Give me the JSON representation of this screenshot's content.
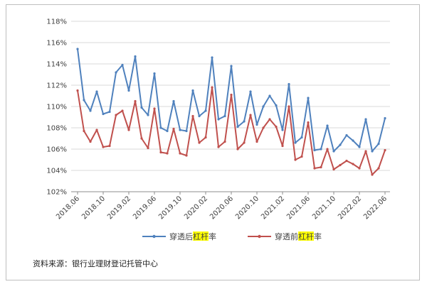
{
  "chart_data": {
    "type": "line",
    "title": "",
    "xlabel": "",
    "ylabel": "",
    "ylim": [
      102,
      118
    ],
    "y_ticks": [
      "102%",
      "104%",
      "106%",
      "108%",
      "110%",
      "112%",
      "114%",
      "116%",
      "118%"
    ],
    "y_tick_values": [
      102,
      104,
      106,
      108,
      110,
      112,
      114,
      116,
      118
    ],
    "x_tick_labels": [
      "2018.06",
      "2018.10",
      "2019.02",
      "2019.06",
      "2019.10",
      "2020.02",
      "2020.06",
      "2020.10",
      "2021.02",
      "2021.06",
      "2021.10",
      "2022.02",
      "2022.06"
    ],
    "categories": [
      "2018.06",
      "2018.07",
      "2018.08",
      "2018.09",
      "2018.10",
      "2018.11",
      "2018.12",
      "2019.01",
      "2019.02",
      "2019.03",
      "2019.04",
      "2019.05",
      "2019.06",
      "2019.07",
      "2019.08",
      "2019.09",
      "2019.10",
      "2019.11",
      "2019.12",
      "2020.01",
      "2020.02",
      "2020.03",
      "2020.04",
      "2020.05",
      "2020.06",
      "2020.07",
      "2020.08",
      "2020.09",
      "2020.10",
      "2020.11",
      "2020.12",
      "2021.01",
      "2021.02",
      "2021.03",
      "2021.04",
      "2021.05",
      "2021.06",
      "2021.07",
      "2021.08",
      "2021.09",
      "2021.10",
      "2021.11",
      "2021.12",
      "2022.01",
      "2022.02",
      "2022.03",
      "2022.04",
      "2022.05",
      "2022.06"
    ],
    "grid": true,
    "legend_position": "bottom",
    "series": [
      {
        "name": "穿透后杠杆率",
        "color": "#4f81bd",
        "values": [
          115.4,
          110.6,
          109.6,
          111.4,
          109.3,
          109.5,
          113.2,
          113.9,
          111.5,
          114.7,
          109.9,
          109.2,
          113.1,
          108.0,
          107.7,
          110.5,
          107.8,
          107.7,
          111.5,
          109.1,
          109.6,
          114.6,
          108.8,
          109.1,
          113.8,
          108.1,
          108.6,
          111.4,
          108.3,
          110.0,
          111.0,
          110.1,
          107.8,
          112.1,
          106.6,
          107.1,
          110.8,
          105.9,
          106.0,
          108.2,
          105.8,
          106.4,
          107.3,
          106.8,
          106.2,
          108.8,
          105.8,
          106.5,
          108.9
        ]
      },
      {
        "name": "穿透前杠杆率",
        "color": "#c0504d",
        "values": [
          111.5,
          107.7,
          106.7,
          107.8,
          106.2,
          106.3,
          109.2,
          109.6,
          107.8,
          110.5,
          107.0,
          106.1,
          109.8,
          105.7,
          105.6,
          107.9,
          105.6,
          105.4,
          109.1,
          106.6,
          107.1,
          111.8,
          106.2,
          106.7,
          111.1,
          106.0,
          106.6,
          109.2,
          106.7,
          108.0,
          108.8,
          108.1,
          106.3,
          110.0,
          105.0,
          105.3,
          108.5,
          104.2,
          104.3,
          106.0,
          104.1,
          104.5,
          104.9,
          104.6,
          104.2,
          105.8,
          103.6,
          104.2,
          105.9
        ]
      }
    ]
  },
  "legend": {
    "blue_prefix": "穿透后",
    "blue_highlight": "杠杆",
    "blue_suffix": "率",
    "red_prefix": "穿透前",
    "red_highlight": "杠杆",
    "red_suffix": "率",
    "highlight_color": "#ffff00"
  },
  "source_note": "资料来源：银行业理财登记托管中心"
}
